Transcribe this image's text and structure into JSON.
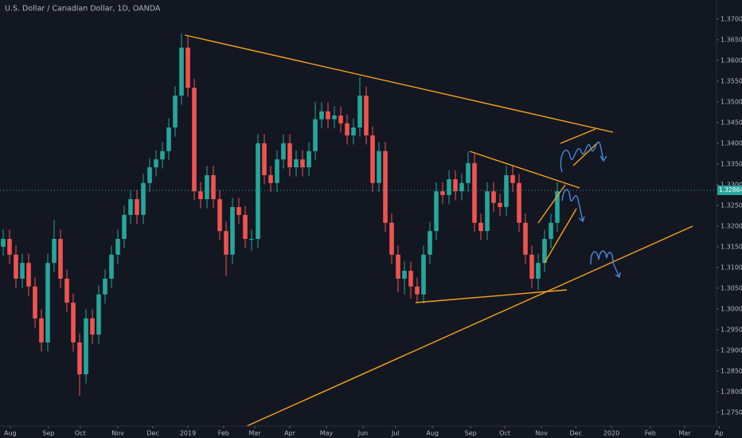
{
  "chart_data": {
    "type": "candlestick",
    "title": "U.S. Dollar / Canadian Dollar, 1D, OANDA",
    "candles": {
      "open": [
        1.315,
        1.3169,
        1.3131,
        1.3073,
        1.3111,
        1.3054,
        1.2977,
        1.2919,
        1.3111,
        1.3169,
        1.3073,
        1.3015,
        1.2919,
        1.2842,
        1.2977,
        1.2938,
        1.3035,
        1.3073,
        1.3131,
        1.3169,
        1.3227,
        1.3265,
        1.3227,
        1.3304,
        1.3342,
        1.3361,
        1.3381,
        1.3438,
        1.3515,
        1.3631,
        1.3534,
        1.3284,
        1.3265,
        1.3323,
        1.3265,
        1.3188,
        1.3131,
        1.3246,
        1.3227,
        1.3169,
        1.3169,
        1.34,
        1.3323,
        1.3304,
        1.3361,
        1.34,
        1.3342,
        1.3361,
        1.3342,
        1.3381,
        1.3458,
        1.3477,
        1.3458,
        1.3467,
        1.3448,
        1.3419,
        1.3438,
        1.3515,
        1.3419,
        1.3304,
        1.3381,
        1.3208,
        1.3131,
        1.3073,
        1.3092,
        1.3054,
        1.3035,
        1.3131,
        1.3188,
        1.3284,
        1.3275,
        1.3313,
        1.3284,
        1.3304,
        1.3352,
        1.3208,
        1.3188,
        1.3284,
        1.3256,
        1.3246,
        1.3323,
        1.3304,
        1.3208,
        1.3131,
        1.3073,
        1.3111,
        1.3169,
        1.3208
      ],
      "high": [
        1.3191,
        1.3191,
        1.3153,
        1.3133,
        1.3133,
        1.3076,
        1.2999,
        1.3133,
        1.3215,
        1.3191,
        1.3095,
        1.3037,
        1.2941,
        1.2999,
        1.2999,
        1.3057,
        1.3095,
        1.3153,
        1.3191,
        1.3249,
        1.3287,
        1.3287,
        1.3326,
        1.3364,
        1.3383,
        1.3403,
        1.346,
        1.3537,
        1.3665,
        1.366,
        1.3556,
        1.3306,
        1.3345,
        1.3345,
        1.3287,
        1.321,
        1.3268,
        1.3268,
        1.3249,
        1.3191,
        1.3422,
        1.3422,
        1.3345,
        1.3383,
        1.3422,
        1.3422,
        1.3383,
        1.3383,
        1.3403,
        1.35,
        1.3499,
        1.3499,
        1.3489,
        1.3489,
        1.347,
        1.346,
        1.356,
        1.3537,
        1.3441,
        1.3403,
        1.3403,
        1.323,
        1.3153,
        1.3114,
        1.3114,
        1.3076,
        1.3153,
        1.321,
        1.3306,
        1.3306,
        1.3335,
        1.3335,
        1.3326,
        1.338,
        1.3374,
        1.323,
        1.3306,
        1.3306,
        1.3278,
        1.3345,
        1.3345,
        1.3326,
        1.323,
        1.3153,
        1.3133,
        1.3191,
        1.323,
        1.3306
      ],
      "low": [
        1.3128,
        1.3109,
        1.3051,
        1.3051,
        1.3032,
        1.2955,
        1.2897,
        1.2897,
        1.3089,
        1.3051,
        1.2993,
        1.2897,
        1.279,
        1.282,
        1.2916,
        1.2916,
        1.3013,
        1.3051,
        1.3109,
        1.3147,
        1.3205,
        1.3205,
        1.3205,
        1.3282,
        1.332,
        1.3339,
        1.3359,
        1.3416,
        1.3493,
        1.3512,
        1.3262,
        1.3243,
        1.3243,
        1.3243,
        1.3166,
        1.308,
        1.3109,
        1.3205,
        1.3147,
        1.314,
        1.3147,
        1.3301,
        1.3282,
        1.3282,
        1.3339,
        1.332,
        1.332,
        1.332,
        1.332,
        1.3359,
        1.3436,
        1.3436,
        1.3436,
        1.3426,
        1.3397,
        1.3397,
        1.3416,
        1.3397,
        1.3282,
        1.3282,
        1.3186,
        1.3109,
        1.304,
        1.3035,
        1.3025,
        1.3018,
        1.3013,
        1.3109,
        1.3166,
        1.3253,
        1.3253,
        1.3262,
        1.3262,
        1.3282,
        1.3186,
        1.3166,
        1.3166,
        1.3234,
        1.3224,
        1.3224,
        1.3282,
        1.3186,
        1.3109,
        1.3051,
        1.3045,
        1.3089,
        1.3147,
        1.3186
      ],
      "close": [
        1.3169,
        1.3131,
        1.3073,
        1.3111,
        1.3054,
        1.2977,
        1.2919,
        1.3111,
        1.3169,
        1.3073,
        1.3015,
        1.2919,
        1.2842,
        1.2977,
        1.2938,
        1.3035,
        1.3073,
        1.3131,
        1.3169,
        1.3227,
        1.3265,
        1.3227,
        1.3304,
        1.3342,
        1.3361,
        1.3381,
        1.3438,
        1.3515,
        1.3631,
        1.3534,
        1.3284,
        1.3265,
        1.3323,
        1.3265,
        1.3188,
        1.3131,
        1.3246,
        1.3227,
        1.3169,
        1.3169,
        1.34,
        1.3323,
        1.3304,
        1.3361,
        1.34,
        1.3342,
        1.3361,
        1.3342,
        1.3381,
        1.3458,
        1.3477,
        1.3458,
        1.3467,
        1.3448,
        1.3419,
        1.3438,
        1.3515,
        1.3419,
        1.3304,
        1.3381,
        1.3208,
        1.3131,
        1.3073,
        1.3092,
        1.3054,
        1.3035,
        1.3131,
        1.3188,
        1.3284,
        1.3275,
        1.3313,
        1.3284,
        1.3304,
        1.3352,
        1.3208,
        1.3188,
        1.3284,
        1.3256,
        1.3246,
        1.3323,
        1.3304,
        1.3208,
        1.3131,
        1.3073,
        1.3111,
        1.3169,
        1.3208,
        1.3284
      ]
    },
    "up_color": "#26a69a",
    "down_color": "#ef5350",
    "last_price": 1.32864,
    "xlim": [
      0,
      113
    ],
    "xticks": [
      {
        "value": 1.6,
        "label": "Aug"
      },
      {
        "value": 7.6,
        "label": "Sep"
      },
      {
        "value": 12.6,
        "label": "Oct"
      },
      {
        "value": 18.5,
        "label": "Nov"
      },
      {
        "value": 24,
        "label": "Dec"
      },
      {
        "value": 29.5,
        "label": "2019"
      },
      {
        "value": 35.1,
        "label": "Feb"
      },
      {
        "value": 40,
        "label": "Mar"
      },
      {
        "value": 45.5,
        "label": "Apr"
      },
      {
        "value": 51.25,
        "label": "May"
      },
      {
        "value": 57,
        "label": "Jun"
      },
      {
        "value": 62.1,
        "label": "Jul"
      },
      {
        "value": 67.9,
        "label": "Aug"
      },
      {
        "value": 73.9,
        "label": "Sep"
      },
      {
        "value": 79.25,
        "label": "Oct"
      },
      {
        "value": 85,
        "label": "Nov"
      },
      {
        "value": 90.4,
        "label": "Dec"
      },
      {
        "value": 96,
        "label": "2020"
      },
      {
        "value": 102.1,
        "label": "Feb"
      },
      {
        "value": 107.5,
        "label": "Mar"
      },
      {
        "value": 112.9,
        "label": "Ap"
      }
    ],
    "ylim": [
      1.2717,
      1.3746
    ],
    "yticks": [
      {
        "value": 1.275,
        "label": "1.27500"
      },
      {
        "value": 1.28,
        "label": "1.28000"
      },
      {
        "value": 1.285,
        "label": "1.28500"
      },
      {
        "value": 1.29,
        "label": "1.29000"
      },
      {
        "value": 1.295,
        "label": "1.29500"
      },
      {
        "value": 1.3,
        "label": "1.30000"
      },
      {
        "value": 1.305,
        "label": "1.30500"
      },
      {
        "value": 1.31,
        "label": "1.31000"
      },
      {
        "value": 1.315,
        "label": "1.31500"
      },
      {
        "value": 1.32,
        "label": "1.32000"
      },
      {
        "value": 1.325,
        "label": "1.32500"
      },
      {
        "value": 1.33,
        "label": "1.33000"
      },
      {
        "value": 1.335,
        "label": "1.33500"
      },
      {
        "value": 1.34,
        "label": "1.34000"
      },
      {
        "value": 1.345,
        "label": "1.34500"
      },
      {
        "value": 1.35,
        "label": "1.35000"
      },
      {
        "value": 1.355,
        "label": "1.35500"
      },
      {
        "value": 1.36,
        "label": "1.36000"
      },
      {
        "value": 1.365,
        "label": "1.36500"
      },
      {
        "value": 1.37,
        "label": "1.37000"
      }
    ],
    "grid": false
  }
}
